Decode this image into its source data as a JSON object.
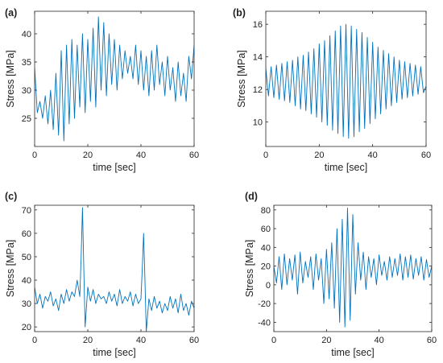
{
  "figure": {
    "colors": {
      "series": "#0072bd",
      "axes": "#262626"
    }
  },
  "chart_data": [
    {
      "panel": "(a)",
      "type": "line",
      "xlabel": "time [sec]",
      "ylabel": "Stress [MPa]",
      "xlim": [
        0,
        60
      ],
      "ylim": [
        20,
        44
      ],
      "xticks": [
        0,
        20,
        40,
        60
      ],
      "yticks": [
        25,
        30,
        35,
        40
      ],
      "grid": false,
      "series": [
        {
          "x": [
            0,
            1,
            2,
            3,
            4,
            5,
            6,
            7,
            8,
            9,
            10,
            11,
            12,
            13,
            14,
            15,
            16,
            17,
            18,
            19,
            20,
            21,
            22,
            23,
            24,
            25,
            26,
            27,
            28,
            29,
            30,
            31,
            32,
            33,
            34,
            35,
            36,
            37,
            38,
            39,
            40,
            41,
            42,
            43,
            44,
            45,
            46,
            47,
            48,
            49,
            50,
            51,
            52,
            53,
            54,
            55,
            56,
            57,
            58,
            59,
            60
          ],
          "y": [
            34,
            26,
            28,
            25,
            29,
            24,
            30,
            23,
            33,
            22,
            37,
            21,
            38,
            24,
            39,
            25,
            38,
            27,
            40,
            26,
            39,
            28,
            41,
            27,
            43,
            30,
            42,
            29,
            40,
            31,
            39,
            30,
            38,
            32,
            37,
            33,
            36,
            32,
            38,
            31,
            37,
            30,
            36,
            29,
            37,
            30,
            38,
            31,
            35,
            29,
            36,
            30,
            34,
            28,
            35,
            29,
            33,
            28,
            36,
            32,
            38
          ]
        }
      ]
    },
    {
      "panel": "(b)",
      "type": "line",
      "xlabel": "time [sec]",
      "ylabel": "Stress [MPa]",
      "xlim": [
        0,
        60
      ],
      "ylim": [
        8.5,
        16.8
      ],
      "xticks": [
        0,
        20,
        40,
        60
      ],
      "yticks": [
        10,
        12,
        14,
        16
      ],
      "grid": false,
      "series": [
        {
          "x": [
            0,
            1,
            2,
            3,
            4,
            5,
            6,
            7,
            8,
            9,
            10,
            11,
            12,
            13,
            14,
            15,
            16,
            17,
            18,
            19,
            20,
            21,
            22,
            23,
            24,
            25,
            26,
            27,
            28,
            29,
            30,
            31,
            32,
            33,
            34,
            35,
            36,
            37,
            38,
            39,
            40,
            41,
            42,
            43,
            44,
            45,
            46,
            47,
            48,
            49,
            50,
            51,
            52,
            53,
            54,
            55,
            56,
            57,
            58,
            59,
            60
          ],
          "y": [
            13.3,
            11.6,
            13.4,
            11.5,
            13.5,
            11.4,
            13.6,
            11.3,
            13.7,
            11.2,
            13.8,
            11.0,
            14.0,
            10.8,
            14.1,
            10.7,
            14.3,
            10.5,
            14.5,
            10.3,
            14.8,
            10.0,
            15.0,
            9.8,
            15.3,
            9.5,
            15.6,
            9.3,
            15.9,
            9.1,
            16.0,
            9.0,
            15.9,
            9.1,
            15.7,
            9.4,
            15.5,
            9.6,
            15.2,
            9.9,
            14.9,
            10.2,
            14.6,
            10.5,
            14.4,
            10.8,
            14.2,
            11.0,
            14.0,
            11.2,
            13.8,
            11.4,
            13.7,
            11.5,
            13.6,
            11.6,
            13.5,
            11.7,
            13.4,
            11.8,
            12.2
          ]
        }
      ]
    },
    {
      "panel": "(c)",
      "type": "line",
      "xlabel": "time [sec]",
      "ylabel": "Stress [MPa]",
      "xlim": [
        0,
        60
      ],
      "ylim": [
        18,
        72
      ],
      "xticks": [
        0,
        20,
        40,
        60
      ],
      "yticks": [
        20,
        30,
        40,
        50,
        60,
        70
      ],
      "grid": false,
      "series": [
        {
          "x": [
            0,
            1,
            2,
            3,
            4,
            5,
            6,
            7,
            8,
            9,
            10,
            11,
            12,
            13,
            14,
            15,
            16,
            17,
            17.5,
            18,
            18.5,
            19,
            20,
            21,
            22,
            23,
            24,
            25,
            26,
            27,
            28,
            29,
            30,
            31,
            32,
            33,
            34,
            35,
            36,
            37,
            38,
            39,
            40,
            40.5,
            41,
            41.5,
            42,
            43,
            44,
            45,
            46,
            47,
            48,
            49,
            50,
            51,
            52,
            53,
            54,
            55,
            56,
            57,
            58,
            59,
            60
          ],
          "y": [
            37,
            30,
            34,
            28,
            33,
            31,
            35,
            29,
            32,
            27,
            34,
            30,
            36,
            31,
            35,
            33,
            40,
            33,
            50,
            71,
            45,
            20,
            37,
            31,
            36,
            30,
            34,
            32,
            33,
            30,
            35,
            31,
            34,
            29,
            36,
            30,
            33,
            31,
            35,
            29,
            34,
            30,
            32,
            45,
            60,
            40,
            18,
            32,
            27,
            33,
            28,
            31,
            26,
            30,
            27,
            33,
            28,
            32,
            26,
            34,
            27,
            30,
            25,
            31,
            28
          ]
        }
      ]
    },
    {
      "panel": "(d)",
      "type": "line",
      "xlabel": "time [sec]",
      "ylabel": "Stress [MPa]",
      "xlim": [
        0,
        60
      ],
      "ylim": [
        -50,
        85
      ],
      "xticks": [
        0,
        20,
        40,
        60
      ],
      "yticks": [
        -40,
        -20,
        0,
        20,
        40,
        60,
        80
      ],
      "grid": false,
      "series": [
        {
          "x": [
            0,
            1,
            2,
            3,
            4,
            5,
            6,
            7,
            8,
            9,
            10,
            11,
            12,
            13,
            14,
            15,
            16,
            17,
            18,
            19,
            20,
            21,
            22,
            23,
            24,
            25,
            26,
            27,
            28,
            29,
            30,
            31,
            32,
            33,
            34,
            35,
            36,
            37,
            38,
            39,
            40,
            41,
            42,
            43,
            44,
            45,
            46,
            47,
            48,
            49,
            50,
            51,
            52,
            53,
            54,
            55,
            56,
            57,
            58,
            59,
            60
          ],
          "y": [
            20,
            2,
            30,
            -5,
            33,
            0,
            28,
            5,
            32,
            -10,
            35,
            2,
            25,
            8,
            30,
            -5,
            33,
            5,
            28,
            -20,
            38,
            -15,
            45,
            -25,
            60,
            -40,
            70,
            -45,
            82,
            -38,
            75,
            -10,
            45,
            5,
            35,
            -5,
            30,
            8,
            28,
            0,
            32,
            10,
            25,
            5,
            30,
            8,
            28,
            10,
            33,
            5,
            30,
            8,
            32,
            6,
            28,
            10,
            30,
            5,
            27,
            8,
            20
          ]
        }
      ]
    }
  ]
}
